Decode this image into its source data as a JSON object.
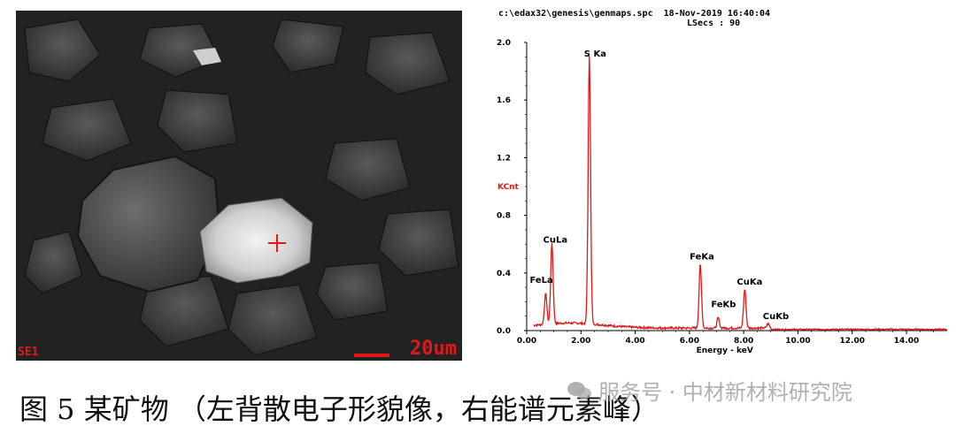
{
  "sem": {
    "detector_label": "SE1",
    "scale_label": "20um",
    "marker_color": "#e21818"
  },
  "eds": {
    "header_line1": "c:\\edax32\\genesis\\genmaps.spc  18-Nov-2019 16:40:04",
    "header_line2": "LSecs : 90"
  },
  "chart_data": {
    "type": "line",
    "title": "",
    "xlabel": "Energy - keV",
    "ylabel": "KCnt",
    "xlim": [
      0,
      15.5
    ],
    "ylim": [
      0,
      2.0
    ],
    "x_ticks": [
      "0.00",
      "2.00",
      "4.00",
      "6.00",
      "8.00",
      "10.00",
      "12.00",
      "14.00"
    ],
    "x_tick_values": [
      0,
      2,
      4,
      6,
      8,
      10,
      12,
      14
    ],
    "y_ticks": [
      "0.0",
      "0.4",
      "0.8",
      "1.2",
      "1.6",
      "2.0"
    ],
    "y_tick_values": [
      0,
      0.4,
      0.8,
      1.2,
      1.6,
      2.0
    ],
    "series_color": "#e21818",
    "peaks": [
      {
        "label": "FeLa",
        "x": 0.7,
        "y": 0.21
      },
      {
        "label": "CuLa",
        "x": 0.93,
        "y": 0.56
      },
      {
        "label": "S Ka",
        "x": 2.31,
        "y": 1.86
      },
      {
        "label": "FeKa",
        "x": 6.4,
        "y": 0.44
      },
      {
        "label": "FeKb",
        "x": 7.06,
        "y": 0.07
      },
      {
        "label": "CuKa",
        "x": 8.04,
        "y": 0.27
      },
      {
        "label": "CuKb",
        "x": 8.9,
        "y": 0.03
      }
    ]
  },
  "caption": {
    "text": "图 5  某矿物  （左背散电子形貌像，右能谱元素峰）"
  },
  "watermark": {
    "text": "服务号 · 中材新材料研究院"
  }
}
